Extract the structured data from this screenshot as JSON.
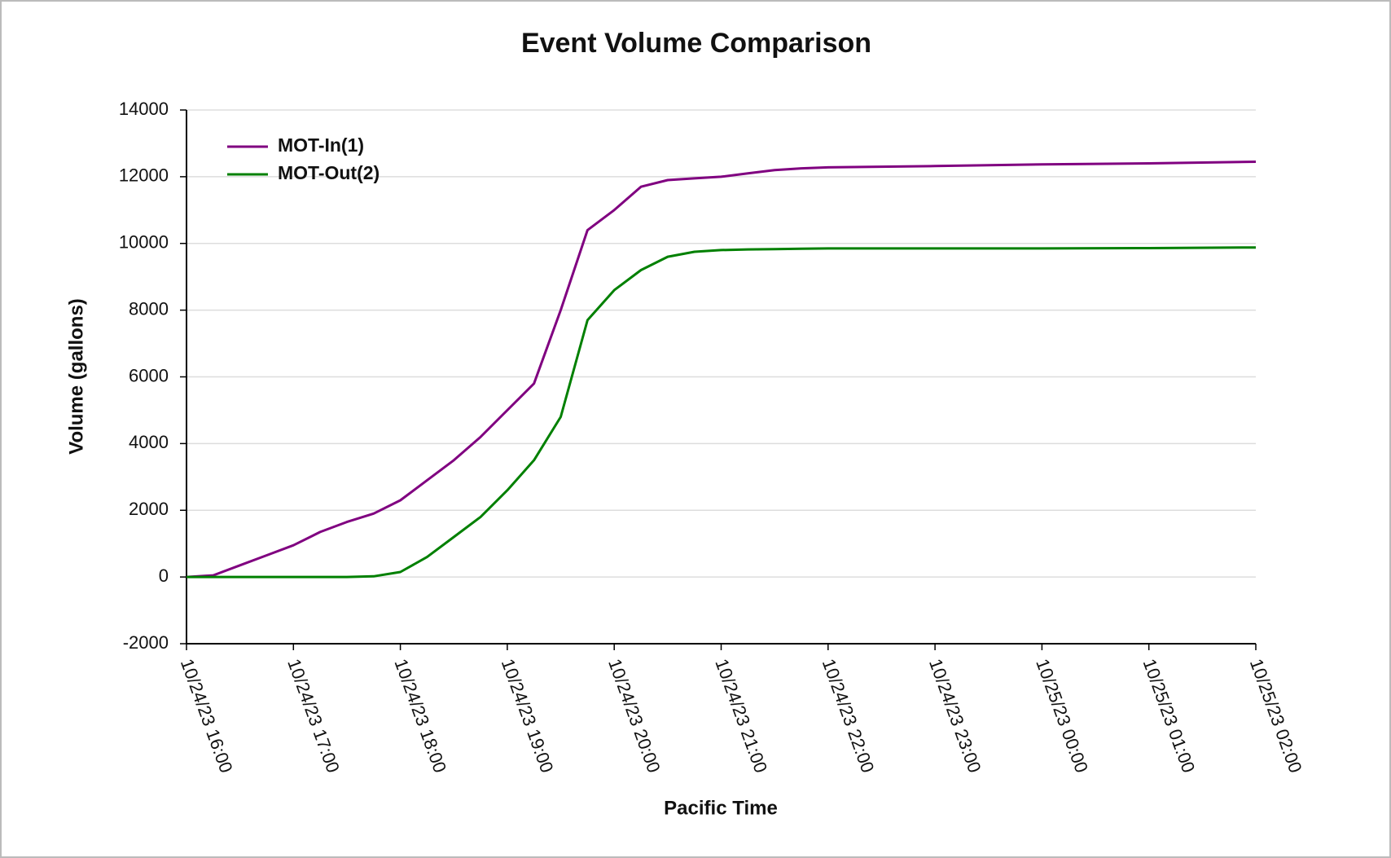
{
  "chart_data": {
    "type": "line",
    "title": "Event Volume Comparison",
    "x_label": "Pacific Time",
    "y_label": "Volume (gallons)",
    "x": [
      "10/24/23 16:00",
      "10/24/23 16:15",
      "10/24/23 16:30",
      "10/24/23 16:45",
      "10/24/23 17:00",
      "10/24/23 17:15",
      "10/24/23 17:30",
      "10/24/23 17:45",
      "10/24/23 18:00",
      "10/24/23 18:15",
      "10/24/23 18:30",
      "10/24/23 18:45",
      "10/24/23 19:00",
      "10/24/23 19:15",
      "10/24/23 19:30",
      "10/24/23 19:45",
      "10/24/23 20:00",
      "10/24/23 20:15",
      "10/24/23 20:30",
      "10/24/23 20:45",
      "10/24/23 21:00",
      "10/24/23 21:15",
      "10/24/23 21:30",
      "10/24/23 21:45",
      "10/24/23 22:00",
      "10/24/23 23:00",
      "10/25/23 00:00",
      "10/25/23 01:00",
      "10/25/23 02:00"
    ],
    "series": [
      {
        "name": "MOT-In(1)",
        "color": "#800080",
        "values": [
          0,
          50,
          350,
          650,
          950,
          1350,
          1650,
          1900,
          2300,
          2900,
          3500,
          4200,
          5000,
          5800,
          8000,
          10400,
          11000,
          11700,
          11900,
          11950,
          12000,
          12100,
          12200,
          12250,
          12280,
          12320,
          12370,
          12400,
          12450
        ]
      },
      {
        "name": "MOT-Out(2)",
        "color": "#008000",
        "values": [
          0,
          0,
          0,
          0,
          0,
          0,
          0,
          20,
          150,
          600,
          1200,
          1800,
          2600,
          3500,
          4800,
          7700,
          8600,
          9200,
          9600,
          9750,
          9800,
          9820,
          9830,
          9840,
          9850,
          9850,
          9850,
          9860,
          9880
        ]
      }
    ],
    "xlim": [
      "10/24/23 16:00",
      "10/25/23 02:00"
    ],
    "xticks": [
      "10/24/23 16:00",
      "10/24/23 17:00",
      "10/24/23 18:00",
      "10/24/23 19:00",
      "10/24/23 20:00",
      "10/24/23 21:00",
      "10/24/23 22:00",
      "10/24/23 23:00",
      "10/25/23 00:00",
      "10/25/23 01:00",
      "10/25/23 02:00"
    ],
    "ylim": [
      -2000,
      14000
    ],
    "yticks": [
      -2000,
      0,
      2000,
      4000,
      6000,
      8000,
      10000,
      12000,
      14000
    ],
    "grid": true,
    "legend": "upper left"
  }
}
